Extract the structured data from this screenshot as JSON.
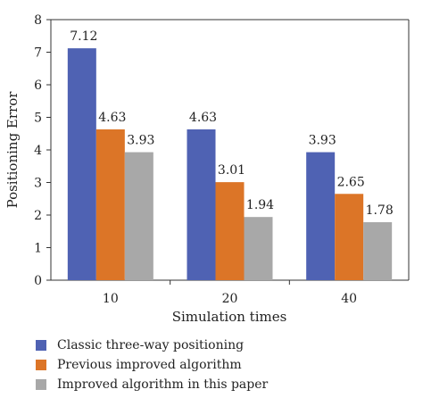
{
  "chart_data": {
    "type": "bar",
    "categories": [
      "10",
      "20",
      "40"
    ],
    "series": [
      {
        "name": "Classic three-way positioning",
        "values": [
          7.12,
          4.63,
          3.93
        ],
        "color": "#4f62b3"
      },
      {
        "name": "Previous improved algorithm",
        "values": [
          4.63,
          3.01,
          2.65
        ],
        "color": "#dc7527"
      },
      {
        "name": "Improved algorithm in this paper",
        "values": [
          3.93,
          1.94,
          1.78
        ],
        "color": "#a8a8a8"
      }
    ],
    "data_labels": [
      [
        "7.12",
        "4.63",
        "3.93"
      ],
      [
        "4.63",
        "3.01",
        "2.65"
      ],
      [
        "3.93",
        "1.94",
        "1.78"
      ]
    ],
    "xlabel": "Simulation times",
    "ylabel": "Positioning Error",
    "ylim": [
      0,
      8
    ],
    "yticks": [
      0,
      1,
      2,
      3,
      4,
      5,
      6,
      7,
      8
    ],
    "grid": false,
    "legend_position": "bottom"
  }
}
